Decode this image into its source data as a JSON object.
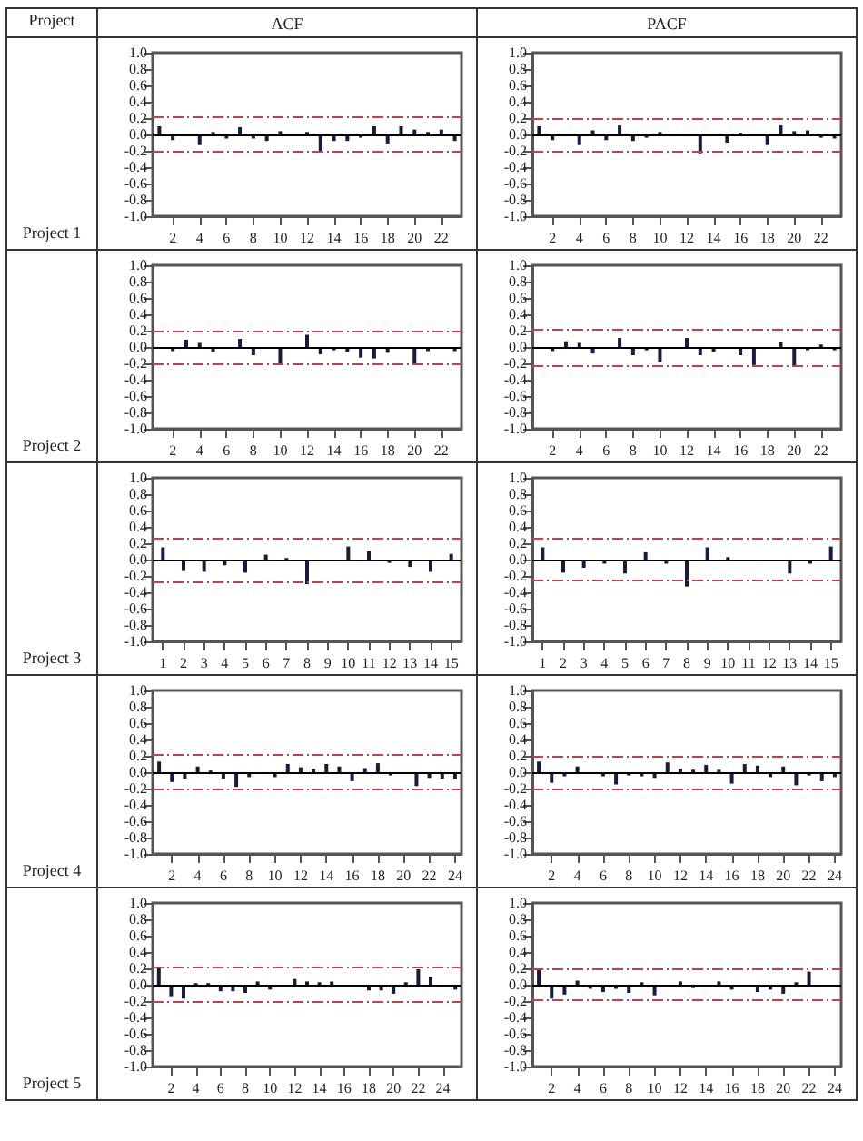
{
  "chart_data": [
    {
      "type": "bar",
      "title": "ACF",
      "annotations": [
        "Project",
        "Project 1"
      ],
      "x": [
        1,
        2,
        3,
        4,
        5,
        6,
        7,
        8,
        9,
        10,
        11,
        12,
        13,
        14,
        15,
        16,
        17,
        18,
        19,
        20,
        21,
        22,
        23
      ],
      "values": [
        0.1,
        -0.07,
        null,
        -0.13,
        0.03,
        -0.05,
        0.09,
        -0.05,
        -0.08,
        0.04,
        -0.02,
        0.03,
        -0.22,
        -0.08,
        -0.08,
        -0.04,
        0.1,
        -0.11,
        0.1,
        0.06,
        0.03,
        0.06,
        -0.08
      ],
      "color": "#1a1a40",
      "xlim": [
        0.5,
        23.5
      ],
      "xticks": [
        2,
        4,
        6,
        8,
        10,
        12,
        14,
        16,
        18,
        20,
        22
      ],
      "ylim": [
        -1,
        1
      ],
      "yticks": [
        {
          "value": -1,
          "label": "-1.0"
        },
        {
          "value": -0.8,
          "label": "-0.8"
        },
        {
          "value": -0.6,
          "label": "-0.6"
        },
        {
          "value": -0.4,
          "label": "-0.4"
        },
        {
          "value": -0.2,
          "label": "-0.2"
        },
        {
          "value": 0,
          "label": "0.0"
        },
        {
          "value": 0.2,
          "label": "0.2"
        },
        {
          "value": 0.4,
          "label": "0.4"
        },
        {
          "value": 0.6,
          "label": "0.6"
        },
        {
          "value": 0.8,
          "label": "0.8"
        },
        {
          "value": 1,
          "label": "1.0"
        }
      ],
      "ref_lines": [
        {
          "axis": "y",
          "value": 0,
          "color": "#000000",
          "line_style": "solid"
        },
        {
          "axis": "y",
          "value": 0.21,
          "color": "#c0404f",
          "line_style": "dashed"
        },
        {
          "axis": "y",
          "value": -0.21,
          "color": "#c0404f",
          "line_style": "dashed"
        }
      ]
    },
    {
      "type": "bar",
      "title": "PACF",
      "x": [
        1,
        2,
        3,
        4,
        5,
        6,
        7,
        8,
        9,
        10,
        11,
        12,
        13,
        14,
        15,
        16,
        17,
        18,
        19,
        20,
        21,
        22,
        23
      ],
      "values": [
        0.1,
        -0.07,
        -0.02,
        -0.13,
        0.05,
        -0.07,
        0.11,
        -0.08,
        -0.04,
        0.03,
        0,
        0,
        -0.23,
        -0.02,
        -0.1,
        0.02,
        0,
        -0.13,
        0.11,
        0.04,
        0.05,
        -0.04,
        -0.05
      ],
      "color": "#1a1a40",
      "xlim": [
        0.5,
        23.5
      ],
      "xticks": [
        2,
        4,
        6,
        8,
        10,
        12,
        14,
        16,
        18,
        20,
        22
      ],
      "ylim": [
        -1,
        1
      ],
      "yticks": [
        {
          "value": -1,
          "label": "-1.0"
        },
        {
          "value": -0.8,
          "label": "-0.8"
        },
        {
          "value": -0.6,
          "label": "-0.6"
        },
        {
          "value": -0.4,
          "label": "-0.4"
        },
        {
          "value": -0.2,
          "label": "-0.2"
        },
        {
          "value": 0,
          "label": "0.0"
        },
        {
          "value": 0.2,
          "label": "0.2"
        },
        {
          "value": 0.4,
          "label": "0.4"
        },
        {
          "value": 0.6,
          "label": "0.6"
        },
        {
          "value": 0.8,
          "label": "0.8"
        },
        {
          "value": 1,
          "label": "1.0"
        }
      ],
      "ref_lines": [
        {
          "axis": "y",
          "value": 0,
          "color": "#000000",
          "line_style": "solid"
        },
        {
          "axis": "y",
          "value": 0.2,
          "color": "#c0404f",
          "line_style": "dashed"
        },
        {
          "axis": "y",
          "value": -0.2,
          "color": "#c0404f",
          "line_style": "dashed"
        }
      ]
    },
    {
      "type": "bar",
      "annotations": [
        "Project 2"
      ],
      "x": [
        1,
        2,
        3,
        4,
        5,
        6,
        7,
        8,
        9,
        10,
        11,
        12,
        13,
        14,
        15,
        16,
        17,
        18,
        19,
        20,
        21,
        22,
        23
      ],
      "values": [
        0,
        -0.05,
        0.09,
        0.05,
        -0.06,
        -0.02,
        0.1,
        -0.1,
        0,
        -0.22,
        0,
        0.15,
        -0.09,
        -0.04,
        -0.06,
        -0.13,
        -0.14,
        -0.07,
        0,
        -0.22,
        -0.05,
        0,
        -0.05
      ],
      "color": "#1a1a40",
      "xlim": [
        0.5,
        23.5
      ],
      "xticks": [
        2,
        4,
        6,
        8,
        10,
        12,
        14,
        16,
        18,
        20,
        22
      ],
      "ylim": [
        -1,
        1
      ],
      "yticks": [
        {
          "value": -1,
          "label": "-1.0"
        },
        {
          "value": -0.8,
          "label": "-0.8"
        },
        {
          "value": -0.6,
          "label": "-0.6"
        },
        {
          "value": -0.4,
          "label": "-0.4"
        },
        {
          "value": -0.2,
          "label": "-0.2"
        },
        {
          "value": 0,
          "label": "0.0"
        },
        {
          "value": 0.2,
          "label": "0.2"
        },
        {
          "value": 0.4,
          "label": "0.4"
        },
        {
          "value": 0.6,
          "label": "0.6"
        },
        {
          "value": 0.8,
          "label": "0.8"
        },
        {
          "value": 1,
          "label": "1.0"
        }
      ],
      "ref_lines": [
        {
          "axis": "y",
          "value": 0,
          "color": "#000000",
          "line_style": "solid"
        },
        {
          "axis": "y",
          "value": 0.2,
          "color": "#c0404f",
          "line_style": "dashed"
        },
        {
          "axis": "y",
          "value": -0.2,
          "color": "#c0404f",
          "line_style": "dashed"
        }
      ]
    },
    {
      "type": "bar",
      "x": [
        1,
        2,
        3,
        4,
        5,
        6,
        7,
        8,
        9,
        10,
        11,
        12,
        13,
        14,
        15,
        16,
        17,
        18,
        19,
        20,
        21,
        22,
        23
      ],
      "values": [
        0,
        -0.05,
        0.07,
        0.05,
        -0.08,
        -0.02,
        0.11,
        -0.1,
        -0.04,
        -0.18,
        null,
        0.11,
        -0.1,
        -0.06,
        -0.02,
        -0.1,
        -0.22,
        0,
        0.06,
        -0.24,
        -0.04,
        0.03,
        -0.04
      ],
      "color": "#1a1a40",
      "xlim": [
        0.5,
        23.5
      ],
      "xticks": [
        2,
        4,
        6,
        8,
        10,
        12,
        14,
        16,
        18,
        20,
        22
      ],
      "ylim": [
        -1,
        1
      ],
      "yticks": [
        {
          "value": -1,
          "label": "-1.0"
        },
        {
          "value": -0.8,
          "label": "-0.8"
        },
        {
          "value": -0.6,
          "label": "-0.6"
        },
        {
          "value": -0.4,
          "label": "-0.4"
        },
        {
          "value": -0.2,
          "label": "-0.2"
        },
        {
          "value": 0,
          "label": "0.0"
        },
        {
          "value": 0.2,
          "label": "0.2"
        },
        {
          "value": 0.4,
          "label": "0.4"
        },
        {
          "value": 0.6,
          "label": "0.6"
        },
        {
          "value": 0.8,
          "label": "0.8"
        },
        {
          "value": 1,
          "label": "1.0"
        }
      ],
      "ref_lines": [
        {
          "axis": "y",
          "value": 0,
          "color": "#000000",
          "line_style": "solid"
        },
        {
          "axis": "y",
          "value": 0.22,
          "color": "#c0404f",
          "line_style": "dashed"
        },
        {
          "axis": "y",
          "value": -0.22,
          "color": "#c0404f",
          "line_style": "dashed"
        }
      ]
    },
    {
      "type": "bar",
      "annotations": [
        "Project 3"
      ],
      "x": [
        1,
        2,
        3,
        4,
        5,
        6,
        7,
        8,
        9,
        10,
        11,
        12,
        13,
        14,
        15
      ],
      "values": [
        0.15,
        -0.14,
        -0.15,
        -0.07,
        -0.16,
        0.06,
        0.02,
        -0.3,
        null,
        0.16,
        0.1,
        -0.04,
        -0.09,
        -0.15,
        0.07
      ],
      "color": "#1a1a40",
      "xlim": [
        0.5,
        15.5
      ],
      "xticks": [
        1,
        2,
        3,
        4,
        5,
        6,
        7,
        8,
        9,
        10,
        11,
        12,
        13,
        14,
        15
      ],
      "ylim": [
        -1,
        1
      ],
      "yticks": [
        {
          "value": -1,
          "label": "-1.0"
        },
        {
          "value": -0.8,
          "label": "-0.8"
        },
        {
          "value": -0.6,
          "label": "-0.6"
        },
        {
          "value": -0.4,
          "label": "-0.4"
        },
        {
          "value": -0.2,
          "label": "-0.2"
        },
        {
          "value": 0,
          "label": "0.0"
        },
        {
          "value": 0.2,
          "label": "0.2"
        },
        {
          "value": 0.4,
          "label": "0.4"
        },
        {
          "value": 0.6,
          "label": "0.6"
        },
        {
          "value": 0.8,
          "label": "0.8"
        },
        {
          "value": 1,
          "label": "1.0"
        }
      ],
      "ref_lines": [
        {
          "axis": "y",
          "value": 0,
          "color": "#000000",
          "line_style": "solid"
        },
        {
          "axis": "y",
          "value": 0.27,
          "color": "#c0404f",
          "line_style": "dashed"
        },
        {
          "axis": "y",
          "value": -0.28,
          "color": "#c0404f",
          "line_style": "dashed"
        }
      ]
    },
    {
      "type": "bar",
      "x": [
        1,
        2,
        3,
        4,
        5,
        6,
        7,
        8,
        9,
        10,
        11,
        12,
        13,
        14,
        15
      ],
      "values": [
        0.15,
        -0.16,
        -0.1,
        -0.05,
        -0.17,
        0.09,
        -0.05,
        -0.33,
        0.15,
        0.03,
        null,
        -0.02,
        -0.17,
        -0.05,
        0.16
      ],
      "color": "#1a1a40",
      "xlim": [
        0.5,
        15.5
      ],
      "xticks": [
        1,
        2,
        3,
        4,
        5,
        6,
        7,
        8,
        9,
        10,
        11,
        12,
        13,
        14,
        15
      ],
      "ylim": [
        -1,
        1
      ],
      "yticks": [
        {
          "value": -1,
          "label": "-1.0"
        },
        {
          "value": -0.8,
          "label": "-0.8"
        },
        {
          "value": -0.6,
          "label": "-0.6"
        },
        {
          "value": -0.4,
          "label": "-0.4"
        },
        {
          "value": -0.2,
          "label": "-0.2"
        },
        {
          "value": 0,
          "label": "0.0"
        },
        {
          "value": 0.2,
          "label": "0.2"
        },
        {
          "value": 0.4,
          "label": "0.4"
        },
        {
          "value": 0.6,
          "label": "0.6"
        },
        {
          "value": 0.8,
          "label": "0.8"
        },
        {
          "value": 1,
          "label": "1.0"
        }
      ],
      "ref_lines": [
        {
          "axis": "y",
          "value": 0,
          "color": "#000000",
          "line_style": "solid"
        },
        {
          "axis": "y",
          "value": 0.26,
          "color": "#c0404f",
          "line_style": "dashed"
        },
        {
          "axis": "y",
          "value": -0.26,
          "color": "#c0404f",
          "line_style": "dashed"
        }
      ]
    },
    {
      "type": "bar",
      "annotations": [
        "Project 4"
      ],
      "x": [
        1,
        2,
        3,
        4,
        5,
        6,
        7,
        8,
        9,
        10,
        11,
        12,
        13,
        14,
        15,
        16,
        17,
        18,
        19,
        20,
        21,
        22,
        23,
        24
      ],
      "values": [
        0.13,
        -0.12,
        -0.08,
        0.07,
        0.02,
        -0.08,
        -0.18,
        -0.06,
        0,
        -0.06,
        0.1,
        0.06,
        0.04,
        0.1,
        0.07,
        -0.11,
        0.05,
        0.11,
        -0.04,
        -0.02,
        -0.17,
        -0.07,
        -0.08,
        -0.08
      ],
      "color": "#1a1a40",
      "xlim": [
        0.5,
        24.5
      ],
      "xticks": [
        2,
        4,
        6,
        8,
        10,
        12,
        14,
        16,
        18,
        20,
        22,
        24
      ],
      "ylim": [
        -1,
        1
      ],
      "yticks": [
        {
          "value": -1,
          "label": "-1.0"
        },
        {
          "value": -0.8,
          "label": "-0.8"
        },
        {
          "value": -0.6,
          "label": "-0.6"
        },
        {
          "value": -0.4,
          "label": "-0.4"
        },
        {
          "value": -0.2,
          "label": "-0.2"
        },
        {
          "value": 0,
          "label": "0.0"
        },
        {
          "value": 0.2,
          "label": "0.2"
        },
        {
          "value": 0.4,
          "label": "0.4"
        },
        {
          "value": 0.6,
          "label": "0.6"
        },
        {
          "value": 0.8,
          "label": "0.8"
        },
        {
          "value": 1,
          "label": "1.0"
        }
      ],
      "ref_lines": [
        {
          "axis": "y",
          "value": 0,
          "color": "#000000",
          "line_style": "solid"
        },
        {
          "axis": "y",
          "value": 0.21,
          "color": "#c0404f",
          "line_style": "dashed"
        },
        {
          "axis": "y",
          "value": -0.21,
          "color": "#c0404f",
          "line_style": "dashed"
        }
      ]
    },
    {
      "type": "bar",
      "x": [
        1,
        2,
        3,
        4,
        5,
        6,
        7,
        8,
        9,
        10,
        11,
        12,
        13,
        14,
        15,
        16,
        17,
        18,
        19,
        20,
        21,
        22,
        23,
        24
      ],
      "values": [
        0.13,
        -0.13,
        -0.05,
        0.07,
        0,
        -0.05,
        -0.15,
        -0.04,
        -0.05,
        -0.07,
        0.12,
        0.04,
        0.03,
        0.09,
        0.03,
        -0.14,
        0.1,
        0.08,
        -0.06,
        0.07,
        -0.16,
        -0.04,
        -0.11,
        -0.06
      ],
      "color": "#1a1a40",
      "xlim": [
        0.5,
        24.5
      ],
      "xticks": [
        2,
        4,
        6,
        8,
        10,
        12,
        14,
        16,
        18,
        20,
        22,
        24
      ],
      "ylim": [
        -1,
        1
      ],
      "yticks": [
        {
          "value": -1,
          "label": "-1.0"
        },
        {
          "value": -0.8,
          "label": "-0.8"
        },
        {
          "value": -0.6,
          "label": "-0.6"
        },
        {
          "value": -0.4,
          "label": "-0.4"
        },
        {
          "value": -0.2,
          "label": "-0.2"
        },
        {
          "value": 0,
          "label": "0.0"
        },
        {
          "value": 0.2,
          "label": "0.2"
        },
        {
          "value": 0.4,
          "label": "0.4"
        },
        {
          "value": 0.6,
          "label": "0.6"
        },
        {
          "value": 0.8,
          "label": "0.8"
        },
        {
          "value": 1,
          "label": "1.0"
        }
      ],
      "ref_lines": [
        {
          "axis": "y",
          "value": 0,
          "color": "#000000",
          "line_style": "solid"
        },
        {
          "axis": "y",
          "value": 0.2,
          "color": "#c0404f",
          "line_style": "dashed"
        },
        {
          "axis": "y",
          "value": -0.2,
          "color": "#c0404f",
          "line_style": "dashed"
        }
      ]
    },
    {
      "type": "bar",
      "annotations": [
        "Project 5"
      ],
      "x": [
        1,
        2,
        3,
        4,
        5,
        6,
        7,
        8,
        9,
        10,
        11,
        12,
        13,
        14,
        15,
        16,
        17,
        18,
        19,
        20,
        21,
        22,
        23,
        24,
        25
      ],
      "values": [
        0.2,
        -0.14,
        -0.17,
        0.02,
        0.02,
        -0.08,
        -0.08,
        -0.1,
        0.04,
        -0.06,
        0,
        0.07,
        0.04,
        0.03,
        0.04,
        0,
        null,
        -0.07,
        -0.07,
        -0.11,
        0.03,
        0.19,
        0.09,
        0,
        -0.06
      ],
      "color": "#1a1a40",
      "xlim": [
        0.5,
        25.5
      ],
      "xticks": [
        2,
        4,
        6,
        8,
        10,
        12,
        14,
        16,
        18,
        20,
        22,
        24
      ],
      "ylim": [
        -1,
        1
      ],
      "yticks": [
        {
          "value": -1,
          "label": "-1.0"
        },
        {
          "value": -0.8,
          "label": "-0.8"
        },
        {
          "value": -0.6,
          "label": "-0.6"
        },
        {
          "value": -0.4,
          "label": "-0.4"
        },
        {
          "value": -0.2,
          "label": "-0.2"
        },
        {
          "value": 0,
          "label": "0.0"
        },
        {
          "value": 0.2,
          "label": "0.2"
        },
        {
          "value": 0.4,
          "label": "0.4"
        },
        {
          "value": 0.6,
          "label": "0.6"
        },
        {
          "value": 0.8,
          "label": "0.8"
        },
        {
          "value": 1,
          "label": "1.0"
        }
      ],
      "ref_lines": [
        {
          "axis": "y",
          "value": 0,
          "color": "#000000",
          "line_style": "solid"
        },
        {
          "axis": "y",
          "value": 0.21,
          "color": "#c0404f",
          "line_style": "dashed"
        },
        {
          "axis": "y",
          "value": -0.21,
          "color": "#c0404f",
          "line_style": "dashed"
        }
      ]
    },
    {
      "type": "bar",
      "x": [
        1,
        2,
        3,
        4,
        5,
        6,
        7,
        8,
        9,
        10,
        11,
        12,
        13,
        14,
        15,
        16,
        17,
        18,
        19,
        20,
        21,
        22,
        23,
        24
      ],
      "values": [
        0.2,
        -0.17,
        -0.12,
        0.05,
        -0.05,
        -0.09,
        -0.05,
        -0.1,
        0.03,
        -0.13,
        0,
        0.04,
        -0.04,
        0,
        0.04,
        -0.06,
        0,
        -0.09,
        -0.06,
        -0.11,
        0.03,
        0.16,
        0,
        -0.02
      ],
      "color": "#1a1a40",
      "xlim": [
        0.5,
        24.5
      ],
      "xticks": [
        2,
        4,
        6,
        8,
        10,
        12,
        14,
        16,
        18,
        20,
        22,
        24
      ],
      "ylim": [
        -1,
        1
      ],
      "yticks": [
        {
          "value": -1,
          "label": "-1.0"
        },
        {
          "value": -0.8,
          "label": "-0.8"
        },
        {
          "value": -0.6,
          "label": "-0.6"
        },
        {
          "value": -0.4,
          "label": "-0.4"
        },
        {
          "value": -0.2,
          "label": "-0.2"
        },
        {
          "value": 0,
          "label": "0.0"
        },
        {
          "value": 0.2,
          "label": "0.2"
        },
        {
          "value": 0.4,
          "label": "0.4"
        },
        {
          "value": 0.6,
          "label": "0.6"
        },
        {
          "value": 0.8,
          "label": "0.8"
        },
        {
          "value": 1,
          "label": "1.0"
        }
      ],
      "ref_lines": [
        {
          "axis": "y",
          "value": 0,
          "color": "#000000",
          "line_style": "solid"
        },
        {
          "axis": "y",
          "value": 0.2,
          "color": "#c0404f",
          "line_style": "dashed"
        },
        {
          "axis": "y",
          "value": -0.19,
          "color": "#c0404f",
          "line_style": "dashed"
        }
      ]
    }
  ]
}
